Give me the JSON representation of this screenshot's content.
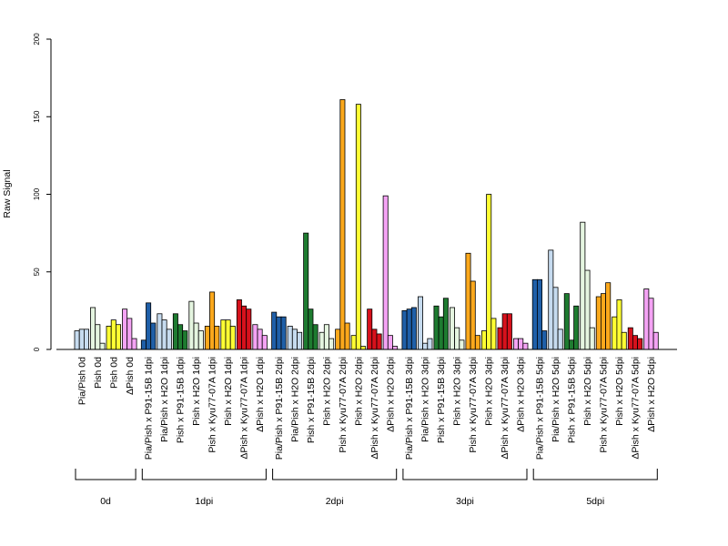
{
  "chart_data": {
    "type": "bar",
    "title": "",
    "xlabel": "",
    "ylabel": "Raw Signal",
    "ylim": [
      0,
      200
    ],
    "yticks": [
      0,
      50,
      100,
      150,
      200
    ],
    "grid": false,
    "legend": "none",
    "groups": [
      {
        "label": "0d",
        "categories": [
          {
            "label": "Pia/Pish 0d",
            "values": [
              12,
              13,
              13
            ],
            "colors": [
              "#c6dbef",
              "#c6dbef",
              "#c6dbef"
            ]
          },
          {
            "label": "Pish 0d",
            "values": [
              27,
              16,
              4
            ],
            "colors": [
              "#e5f5e0",
              "#e5f5e0",
              "#e5f5e0"
            ]
          },
          {
            "label": "Pish 0d",
            "values": [
              15,
              19,
              16
            ],
            "colors": [
              "#ffff33",
              "#ffff33",
              "#ffff33"
            ]
          },
          {
            "label": "ΔPish 0d",
            "values": [
              26,
              20,
              7
            ],
            "colors": [
              "#f4a3f4",
              "#f4a3f4",
              "#f4a3f4"
            ]
          }
        ]
      },
      {
        "label": "1dpi",
        "categories": [
          {
            "label": "Pia/Pish x P91-15B 1dpi",
            "values": [
              6,
              30,
              17
            ],
            "colors": [
              "#1f5fa8",
              "#1f5fa8",
              "#1f5fa8"
            ]
          },
          {
            "label": "Pia/Pish x H2O 1dpi",
            "values": [
              23,
              19,
              13
            ],
            "colors": [
              "#c6dbef",
              "#c6dbef",
              "#c6dbef"
            ]
          },
          {
            "label": "Pish x P91-15B 1dpi",
            "values": [
              23,
              16,
              12
            ],
            "colors": [
              "#1e7b30",
              "#1e7b30",
              "#1e7b30"
            ]
          },
          {
            "label": "Pish x H2O 1dpi",
            "values": [
              31,
              17,
              12
            ],
            "colors": [
              "#e5f5e0",
              "#e5f5e0",
              "#e5f5e0"
            ]
          },
          {
            "label": "Pish x Kyu77-07A 1dpi",
            "values": [
              15,
              37,
              15
            ],
            "colors": [
              "#fba81c",
              "#fba81c",
              "#fba81c"
            ]
          },
          {
            "label": "Pish x H2O 1dpi",
            "values": [
              19,
              19,
              15
            ],
            "colors": [
              "#ffff33",
              "#ffff33",
              "#ffff33"
            ]
          },
          {
            "label": "ΔPish x Kyu77-07A 1dpi",
            "values": [
              32,
              28,
              26
            ],
            "colors": [
              "#d7111c",
              "#d7111c",
              "#d7111c"
            ]
          },
          {
            "label": "ΔPish x H2O 1dpi",
            "values": [
              16,
              13,
              9
            ],
            "colors": [
              "#f4a3f4",
              "#f4a3f4",
              "#f4a3f4"
            ]
          }
        ]
      },
      {
        "label": "2dpi",
        "categories": [
          {
            "label": "Pia/Pish x P91-15B 2dpi",
            "values": [
              24,
              21,
              21
            ],
            "colors": [
              "#1f5fa8",
              "#1f5fa8",
              "#1f5fa8"
            ]
          },
          {
            "label": "Pia/Pish x H2O 2dpi",
            "values": [
              15,
              13,
              11
            ],
            "colors": [
              "#c6dbef",
              "#c6dbef",
              "#c6dbef"
            ]
          },
          {
            "label": "Pish x P91-15B 2dpi",
            "values": [
              75,
              26,
              16
            ],
            "colors": [
              "#1e7b30",
              "#1e7b30",
              "#1e7b30"
            ]
          },
          {
            "label": "Pish x H2O 2dpi",
            "values": [
              11,
              16,
              7
            ],
            "colors": [
              "#e5f5e0",
              "#e5f5e0",
              "#e5f5e0"
            ]
          },
          {
            "label": "Pish x Kyu77-07A 2dpi",
            "values": [
              13,
              161,
              17
            ],
            "colors": [
              "#fba81c",
              "#fba81c",
              "#fba81c"
            ]
          },
          {
            "label": "Pish x H2O 2dpi",
            "values": [
              9,
              158,
              2
            ],
            "colors": [
              "#ffff33",
              "#ffff33",
              "#ffff33"
            ]
          },
          {
            "label": "ΔPish x Kyu77-07A 2dpi",
            "values": [
              26,
              13,
              10
            ],
            "colors": [
              "#d7111c",
              "#d7111c",
              "#d7111c"
            ]
          },
          {
            "label": "ΔPish x H2O 2dpi",
            "values": [
              99,
              9,
              2
            ],
            "colors": [
              "#f4a3f4",
              "#f4a3f4",
              "#f4a3f4"
            ]
          }
        ]
      },
      {
        "label": "3dpi",
        "categories": [
          {
            "label": "Pia/Pish x P91-15B 3dpi",
            "values": [
              25,
              26,
              27
            ],
            "colors": [
              "#1f5fa8",
              "#1f5fa8",
              "#1f5fa8"
            ]
          },
          {
            "label": "Pia/Pish x H2O 3dpi",
            "values": [
              34,
              4,
              7
            ],
            "colors": [
              "#c6dbef",
              "#c6dbef",
              "#c6dbef"
            ]
          },
          {
            "label": "Pish x P91-15B 3dpi",
            "values": [
              28,
              21,
              33
            ],
            "colors": [
              "#1e7b30",
              "#1e7b30",
              "#1e7b30"
            ]
          },
          {
            "label": "Pish x H2O 3dpi",
            "values": [
              27,
              14,
              6
            ],
            "colors": [
              "#e5f5e0",
              "#e5f5e0",
              "#e5f5e0"
            ]
          },
          {
            "label": "Pish x Kyu77-07A 3dpi",
            "values": [
              62,
              44,
              9
            ],
            "colors": [
              "#fba81c",
              "#fba81c",
              "#fba81c"
            ]
          },
          {
            "label": "Pish x H2O 3dpi",
            "values": [
              12,
              100,
              20
            ],
            "colors": [
              "#ffff33",
              "#ffff33",
              "#ffff33"
            ]
          },
          {
            "label": "ΔPish x Kyu77-07A 3dpi",
            "values": [
              14,
              23,
              23
            ],
            "colors": [
              "#d7111c",
              "#d7111c",
              "#d7111c"
            ]
          },
          {
            "label": "ΔPish x H2O 3dpi",
            "values": [
              7,
              7,
              4
            ],
            "colors": [
              "#f4a3f4",
              "#f4a3f4",
              "#f4a3f4"
            ]
          }
        ]
      },
      {
        "label": "5dpi",
        "categories": [
          {
            "label": "Pia/Pish x P91-15B 5dpi",
            "values": [
              45,
              45,
              12
            ],
            "colors": [
              "#1f5fa8",
              "#1f5fa8",
              "#1f5fa8"
            ]
          },
          {
            "label": "Pia/Pish x H2O 5dpi",
            "values": [
              64,
              40,
              13
            ],
            "colors": [
              "#c6dbef",
              "#c6dbef",
              "#c6dbef"
            ]
          },
          {
            "label": "Pish x P91-15B 5dpi",
            "values": [
              36,
              6,
              28
            ],
            "colors": [
              "#1e7b30",
              "#1e7b30",
              "#1e7b30"
            ]
          },
          {
            "label": "Pish x H2O 5dpi",
            "values": [
              82,
              51,
              14
            ],
            "colors": [
              "#e5f5e0",
              "#e5f5e0",
              "#e5f5e0"
            ]
          },
          {
            "label": "Pish x Kyu77-07A 5dpi",
            "values": [
              34,
              36,
              43
            ],
            "colors": [
              "#fba81c",
              "#fba81c",
              "#fba81c"
            ]
          },
          {
            "label": "Pish x H2O 5dpi",
            "values": [
              21,
              32,
              11
            ],
            "colors": [
              "#ffff33",
              "#ffff33",
              "#ffff33"
            ]
          },
          {
            "label": "ΔPish x Kyu77-07A 5dpi",
            "values": [
              14,
              9,
              7
            ],
            "colors": [
              "#d7111c",
              "#d7111c",
              "#d7111c"
            ]
          },
          {
            "label": "ΔPish x H2O 5dpi",
            "values": [
              39,
              33,
              11
            ],
            "colors": [
              "#f4a3f4",
              "#f4a3f4",
              "#f4a3f4"
            ]
          }
        ]
      }
    ]
  }
}
